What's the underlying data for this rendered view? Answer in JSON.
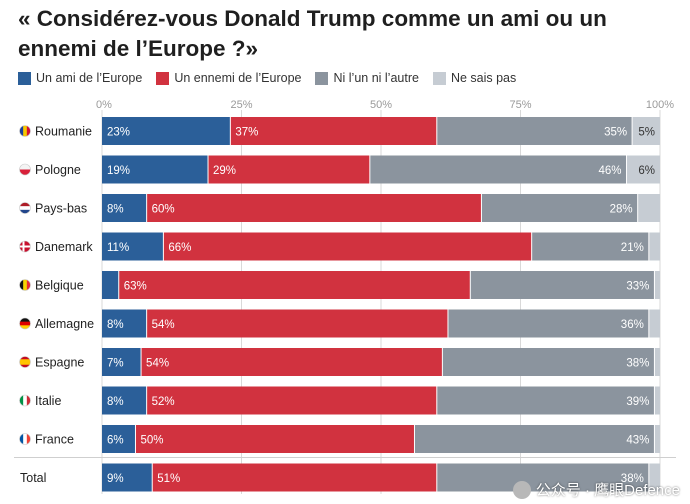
{
  "chart_data": {
    "type": "bar",
    "stacked": true,
    "orientation": "horizontal",
    "title": "« Considérez-vous Donald Trump comme un ami ou un ennemi de l’Europe ?»",
    "xlim": [
      0,
      100
    ],
    "tick_labels": [
      "0%",
      "25%",
      "50%",
      "75%",
      "100%"
    ],
    "grid": true,
    "legend_position": "top-left",
    "categories": [
      "Roumanie",
      "Pologne",
      "Pays-bas",
      "Danemark",
      "Belgique",
      "Allemagne",
      "Espagne",
      "Italie",
      "France",
      "Total"
    ],
    "flags": [
      "flag-romania",
      "flag-poland",
      "flag-netherlands",
      "flag-denmark",
      "flag-belgium",
      "flag-germany",
      "flag-spain",
      "flag-italy",
      "flag-france",
      ""
    ],
    "series": [
      {
        "name": "Un ami de l’Europe",
        "color": "#2b5f99",
        "values": [
          23,
          19,
          8,
          11,
          3,
          8,
          7,
          8,
          6,
          9
        ],
        "labels": [
          "23%",
          "19%",
          "8%",
          "11%",
          "",
          "8%",
          "7%",
          "8%",
          "6%",
          "9%"
        ]
      },
      {
        "name": "Un ennemi de l’Europe",
        "color": "#d1323f",
        "values": [
          37,
          29,
          60,
          66,
          63,
          54,
          54,
          52,
          50,
          51
        ],
        "labels": [
          "37%",
          "29%",
          "60%",
          "66%",
          "63%",
          "54%",
          "54%",
          "52%",
          "50%",
          "51%"
        ]
      },
      {
        "name": "Ni l’un ni l’autre",
        "color": "#8b949e",
        "values": [
          35,
          46,
          28,
          21,
          33,
          36,
          38,
          39,
          43,
          38
        ],
        "labels": [
          "35%",
          "46%",
          "28%",
          "21%",
          "33%",
          "36%",
          "38%",
          "39%",
          "43%",
          "38%"
        ]
      },
      {
        "name": "Ne sais pas",
        "color": "#c6ccd3",
        "values": [
          5,
          6,
          4,
          2,
          1,
          2,
          1,
          1,
          1,
          2
        ],
        "labels": [
          "5%",
          "6%",
          "",
          "",
          "",
          "",
          "",
          "",
          "",
          ""
        ]
      }
    ]
  },
  "watermark": {
    "text": "公众号 · 鹰眼Defence",
    "icon": "wechat-icon"
  }
}
